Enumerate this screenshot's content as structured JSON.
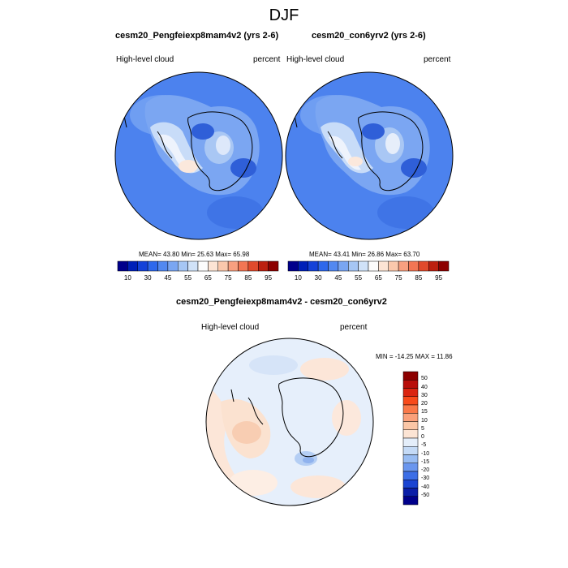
{
  "figure": {
    "title": "DJF"
  },
  "panels": [
    {
      "title": "cesm20_Pengfeiexp8mam4v2 (yrs 2-6)",
      "left_label": "High-level cloud",
      "right_label": "percent",
      "stats": "MEAN=  43.80  Min=  25.63  Max=  65.98"
    },
    {
      "title": "cesm20_con6yrv2 (yrs 2-6)",
      "left_label": "High-level cloud",
      "right_label": "percent",
      "stats": "MEAN=  43.41  Min=  26.86  Max=  63.70"
    },
    {
      "title": "cesm20_Pengfeiexp8mam4v2 - cesm20_con6yrv2",
      "left_label": "High-level cloud",
      "right_label": "percent",
      "stats": "MIN = -14.25 MAX =  11.86"
    }
  ],
  "colorbar_h": {
    "ticks": [
      "10",
      "30",
      "45",
      "55",
      "65",
      "75",
      "85",
      "95"
    ],
    "colors": [
      "#00008B",
      "#0020B8",
      "#1442D8",
      "#2E68EC",
      "#5288F0",
      "#7AA6F2",
      "#A6C6F4",
      "#D0E2F8",
      "#FCFCFC",
      "#FCE4D4",
      "#FAC8AC",
      "#F8A080",
      "#F27654",
      "#E04A2C",
      "#BC2010",
      "#8C0000"
    ]
  },
  "colorbar_v": {
    "ticks": [
      "50",
      "40",
      "30",
      "20",
      "15",
      "10",
      "5",
      "0",
      "-5",
      "-10",
      "-15",
      "-20",
      "-30",
      "-40",
      "-50"
    ],
    "colors": [
      "#8C0000",
      "#B80E0A",
      "#DA2410",
      "#F84A1A",
      "#FA7848",
      "#FAA07A",
      "#FAC6A6",
      "#FCE4D4",
      "#E4EEFA",
      "#C4DAF6",
      "#98BCF2",
      "#6A96EE",
      "#3C6EE6",
      "#1A44D2",
      "#0A1EA8",
      "#00008B"
    ]
  },
  "chart_data": [
    {
      "type": "heatmap",
      "title": "cesm20_Pengfeiexp8mam4v2 (yrs 2-6)",
      "variable": "High-level cloud",
      "units": "percent",
      "projection": "south-polar stereographic",
      "mean": 43.8,
      "min": 25.63,
      "max": 65.98,
      "levels": [
        10,
        30,
        45,
        55,
        65,
        75,
        85,
        95
      ]
    },
    {
      "type": "heatmap",
      "title": "cesm20_con6yrv2 (yrs 2-6)",
      "variable": "High-level cloud",
      "units": "percent",
      "projection": "south-polar stereographic",
      "mean": 43.41,
      "min": 26.86,
      "max": 63.7,
      "levels": [
        10,
        30,
        45,
        55,
        65,
        75,
        85,
        95
      ]
    },
    {
      "type": "heatmap",
      "title": "cesm20_Pengfeiexp8mam4v2 - cesm20_con6yrv2",
      "variable": "High-level cloud",
      "units": "percent",
      "projection": "south-polar stereographic",
      "min": -14.25,
      "max": 11.86,
      "levels": [
        -50,
        -40,
        -30,
        -20,
        -15,
        -10,
        -5,
        0,
        5,
        10,
        15,
        20,
        30,
        40,
        50
      ]
    }
  ]
}
